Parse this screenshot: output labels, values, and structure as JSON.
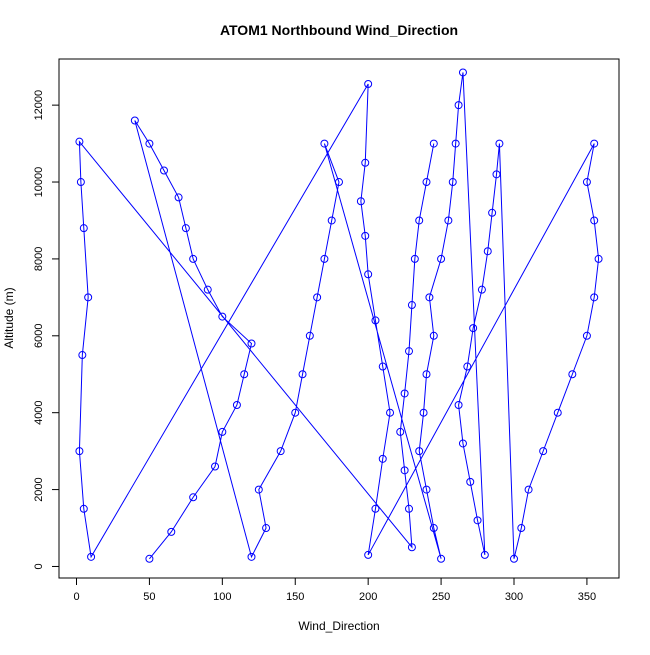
{
  "chart_data": {
    "type": "scatter",
    "title": "ATOM1 Northbound Wind_Direction",
    "xlabel": "Wind_Direction",
    "ylabel": "Altitude (m)",
    "xlim": [
      -12,
      372
    ],
    "ylim": [
      -300,
      13200
    ],
    "xticks": [
      "0",
      "50",
      "100",
      "150",
      "200",
      "250",
      "300",
      "350"
    ],
    "yticks": [
      "0",
      "2000",
      "4000",
      "6000",
      "8000",
      "10000",
      "12000"
    ],
    "grid": false,
    "legend": "none",
    "point_style": "open-circle-with-connecting-lines",
    "color": "#0000ff",
    "series": [
      {
        "points": [
          [
            50,
            200
          ],
          [
            65,
            900
          ],
          [
            80,
            1800
          ],
          [
            95,
            2600
          ],
          [
            100,
            3500
          ],
          [
            110,
            4200
          ],
          [
            115,
            5000
          ],
          [
            120,
            5800
          ],
          [
            100,
            6500
          ],
          [
            90,
            7200
          ],
          [
            80,
            8000
          ],
          [
            75,
            8800
          ],
          [
            70,
            9600
          ],
          [
            60,
            10300
          ],
          [
            50,
            11000
          ],
          [
            40,
            11600
          ],
          [
            120,
            250
          ],
          [
            130,
            1000
          ],
          [
            125,
            2000
          ],
          [
            140,
            3000
          ],
          [
            150,
            4000
          ],
          [
            155,
            5000
          ],
          [
            160,
            6000
          ],
          [
            165,
            7000
          ],
          [
            170,
            8000
          ],
          [
            175,
            9000
          ],
          [
            180,
            10000
          ],
          [
            170,
            11000
          ],
          [
            250,
            200
          ],
          [
            245,
            1000
          ],
          [
            240,
            2000
          ],
          [
            235,
            3000
          ],
          [
            238,
            4000
          ],
          [
            240,
            5000
          ],
          [
            245,
            6000
          ],
          [
            242,
            7000
          ],
          [
            250,
            8000
          ],
          [
            255,
            9000
          ],
          [
            258,
            10000
          ],
          [
            260,
            11000
          ],
          [
            262,
            12000
          ],
          [
            265,
            12850
          ],
          [
            280,
            300
          ],
          [
            275,
            1200
          ],
          [
            270,
            2200
          ],
          [
            265,
            3200
          ],
          [
            262,
            4200
          ],
          [
            268,
            5200
          ],
          [
            272,
            6200
          ],
          [
            278,
            7200
          ],
          [
            282,
            8200
          ],
          [
            285,
            9200
          ],
          [
            288,
            10200
          ],
          [
            290,
            11000
          ],
          [
            300,
            200
          ],
          [
            305,
            1000
          ],
          [
            310,
            2000
          ],
          [
            320,
            3000
          ],
          [
            330,
            4000
          ],
          [
            340,
            5000
          ],
          [
            350,
            6000
          ],
          [
            355,
            7000
          ],
          [
            358,
            8000
          ],
          [
            355,
            9000
          ],
          [
            350,
            10000
          ],
          [
            355,
            11000
          ],
          [
            200,
            300
          ],
          [
            205,
            1500
          ],
          [
            210,
            2800
          ],
          [
            215,
            4000
          ],
          [
            210,
            5200
          ],
          [
            205,
            6400
          ],
          [
            200,
            7600
          ],
          [
            198,
            8600
          ],
          [
            195,
            9500
          ],
          [
            198,
            10500
          ],
          [
            200,
            12550
          ],
          [
            10,
            250
          ],
          [
            5,
            1500
          ],
          [
            2,
            3000
          ],
          [
            4,
            5500
          ],
          [
            8,
            7000
          ],
          [
            5,
            8800
          ],
          [
            3,
            10000
          ],
          [
            2,
            11050
          ],
          [
            230,
            500
          ],
          [
            228,
            1500
          ],
          [
            225,
            2500
          ],
          [
            222,
            3500
          ],
          [
            225,
            4500
          ],
          [
            228,
            5600
          ],
          [
            230,
            6800
          ],
          [
            232,
            8000
          ],
          [
            235,
            9000
          ],
          [
            240,
            10000
          ],
          [
            245,
            11000
          ]
        ]
      }
    ]
  }
}
